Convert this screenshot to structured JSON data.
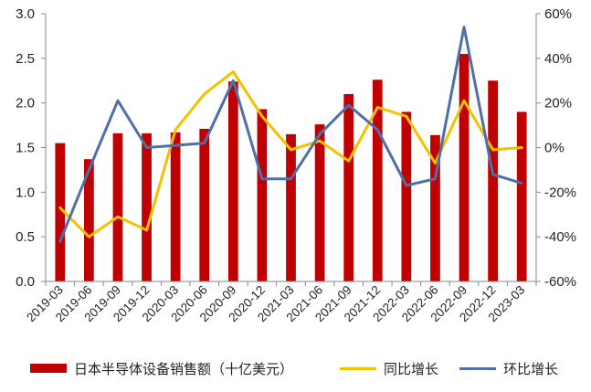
{
  "chart_data": {
    "type": "bar",
    "categories": [
      "2019-03",
      "2019-06",
      "2019-09",
      "2019-12",
      "2020-03",
      "2020-06",
      "2020-09",
      "2020-12",
      "2021-03",
      "2021-06",
      "2021-09",
      "2021-12",
      "2022-03",
      "2022-06",
      "2022-09",
      "2022-12",
      "2023-03"
    ],
    "series": [
      {
        "name": "日本半导体设备销售额（十亿美元）",
        "type": "bar",
        "axis": "left",
        "color": "#C00000",
        "values": [
          1.55,
          1.37,
          1.66,
          1.66,
          1.67,
          1.71,
          2.24,
          1.93,
          1.65,
          1.76,
          2.1,
          2.26,
          1.9,
          1.64,
          2.55,
          2.25,
          1.9
        ]
      },
      {
        "name": "同比增长",
        "type": "line",
        "axis": "right",
        "color": "#F5C000",
        "values": [
          -27,
          -40,
          -31,
          -37,
          8,
          24,
          34,
          14,
          -1,
          3,
          -6,
          18,
          14,
          -7,
          21,
          -1,
          0
        ]
      },
      {
        "name": "环比增长",
        "type": "line",
        "axis": "right",
        "color": "#4F6FA8",
        "values": [
          -42,
          -10,
          21,
          0,
          1,
          2,
          30,
          -14,
          -14,
          6,
          19,
          8,
          -17,
          -14,
          54,
          -12,
          -16
        ]
      }
    ],
    "ylim": [
      0,
      3.0
    ],
    "yticks": [
      "0.0",
      "0.5",
      "1.0",
      "1.5",
      "2.0",
      "2.5",
      "3.0"
    ],
    "y2lim": [
      -60,
      60
    ],
    "y2ticks": [
      "-60%",
      "-40%",
      "-20%",
      "0%",
      "20%",
      "40%",
      "60%"
    ],
    "legend_position": "bottom",
    "grid": false
  }
}
